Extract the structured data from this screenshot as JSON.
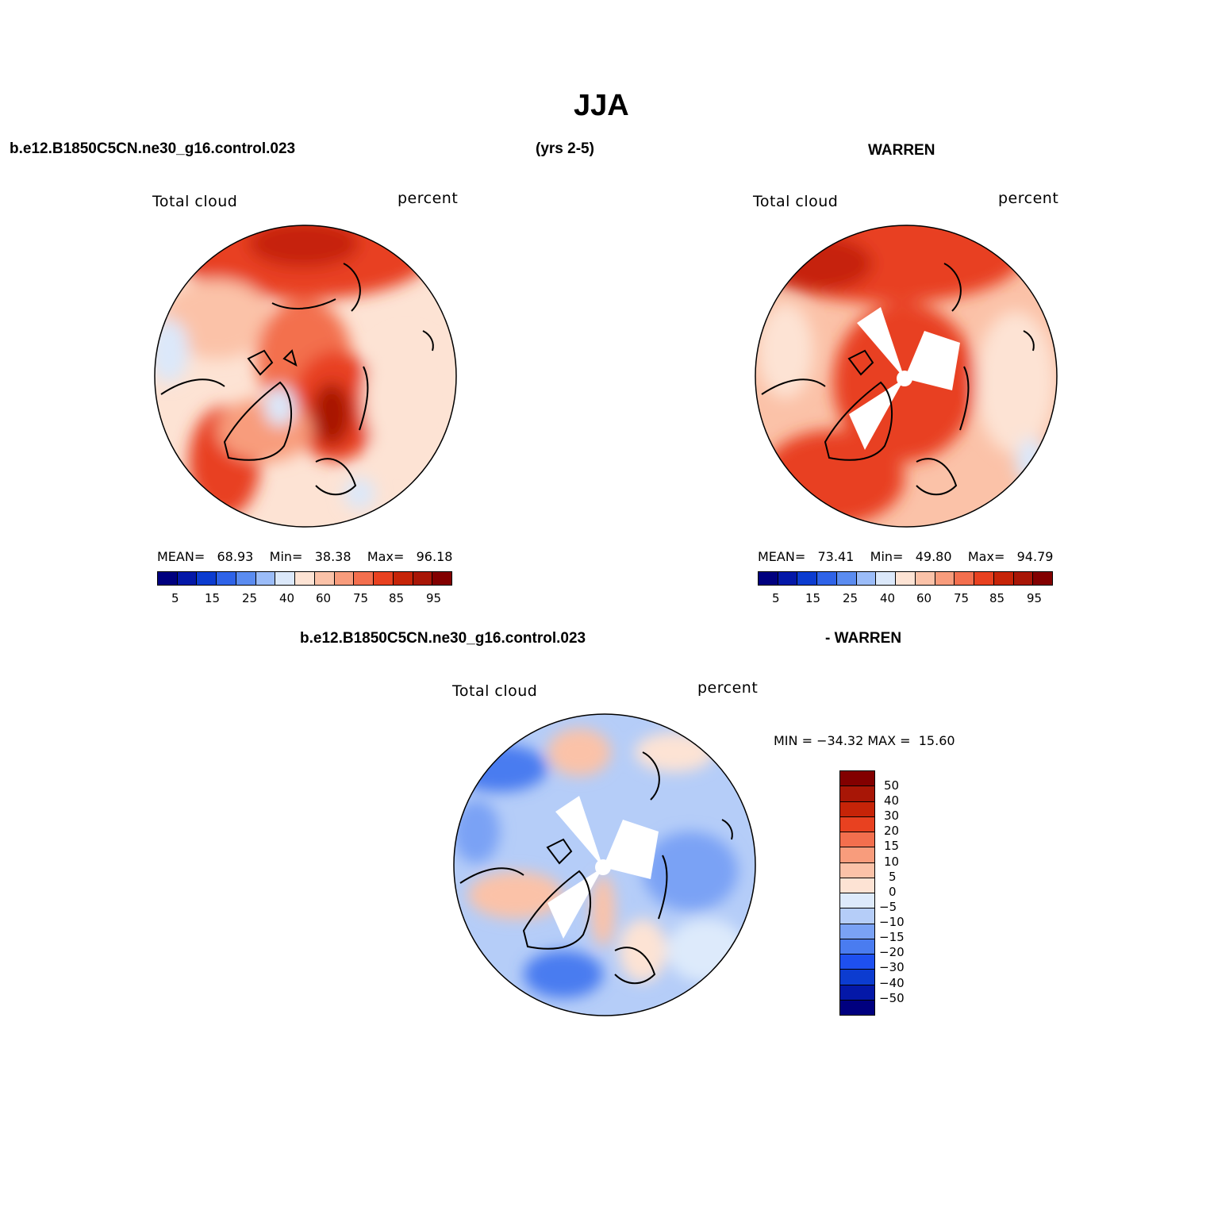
{
  "page": {
    "title": "JJA",
    "header_left": "b.e12.B1850C5CN.ne30_g16.control.023",
    "header_mid": "(yrs 2-5)",
    "header_right": "WARREN",
    "diff_left": "b.e12.B1850C5CN.ne30_g16.control.023",
    "diff_right": "- WARREN"
  },
  "colors": {
    "abs_scale": [
      "#00007f",
      "#0418a8",
      "#0c3cd0",
      "#2f63e8",
      "#5b8cf0",
      "#9bbcf8",
      "#dbe8fa",
      "#fde3d4",
      "#fbc2a8",
      "#f89c7c",
      "#f36f4e",
      "#e84120",
      "#c62408",
      "#a81606",
      "#820000"
    ],
    "diff_scale": [
      "#00007f",
      "#0418a8",
      "#0c3cd0",
      "#1e50f0",
      "#4a7cf0",
      "#7aa2f5",
      "#b5cdf8",
      "#ddeafb",
      "#fde3d4",
      "#fbc2a8",
      "#f89c7c",
      "#f36f4e",
      "#e84120",
      "#c62408",
      "#a81606",
      "#820000"
    ]
  },
  "panels": [
    {
      "id": "model",
      "variable_label": "Total cloud",
      "units_label": "percent",
      "stats": {
        "mean_label": "MEAN=",
        "mean": "68.93",
        "min_label": "Min=",
        "min": "38.38",
        "max_label": "Max=",
        "max": "96.18"
      },
      "colorbar_ticks": [
        "5",
        "15",
        "25",
        "40",
        "60",
        "75",
        "85",
        "95"
      ]
    },
    {
      "id": "obs",
      "variable_label": "Total cloud",
      "units_label": "percent",
      "stats": {
        "mean_label": "MEAN=",
        "mean": "73.41",
        "min_label": "Min=",
        "min": "49.80",
        "max_label": "Max=",
        "max": "94.79"
      },
      "colorbar_ticks": [
        "5",
        "15",
        "25",
        "40",
        "60",
        "75",
        "85",
        "95"
      ]
    },
    {
      "id": "diff",
      "variable_label": "Total cloud",
      "units_label": "percent",
      "minmax_text": "MIN = −34.32 MAX =  15.60",
      "colorbar_ticks": [
        "50",
        "40",
        "30",
        "20",
        "15",
        "10",
        "5",
        "0",
        "−5",
        "−10",
        "−15",
        "−20",
        "−30",
        "−40",
        "−50"
      ]
    }
  ]
}
